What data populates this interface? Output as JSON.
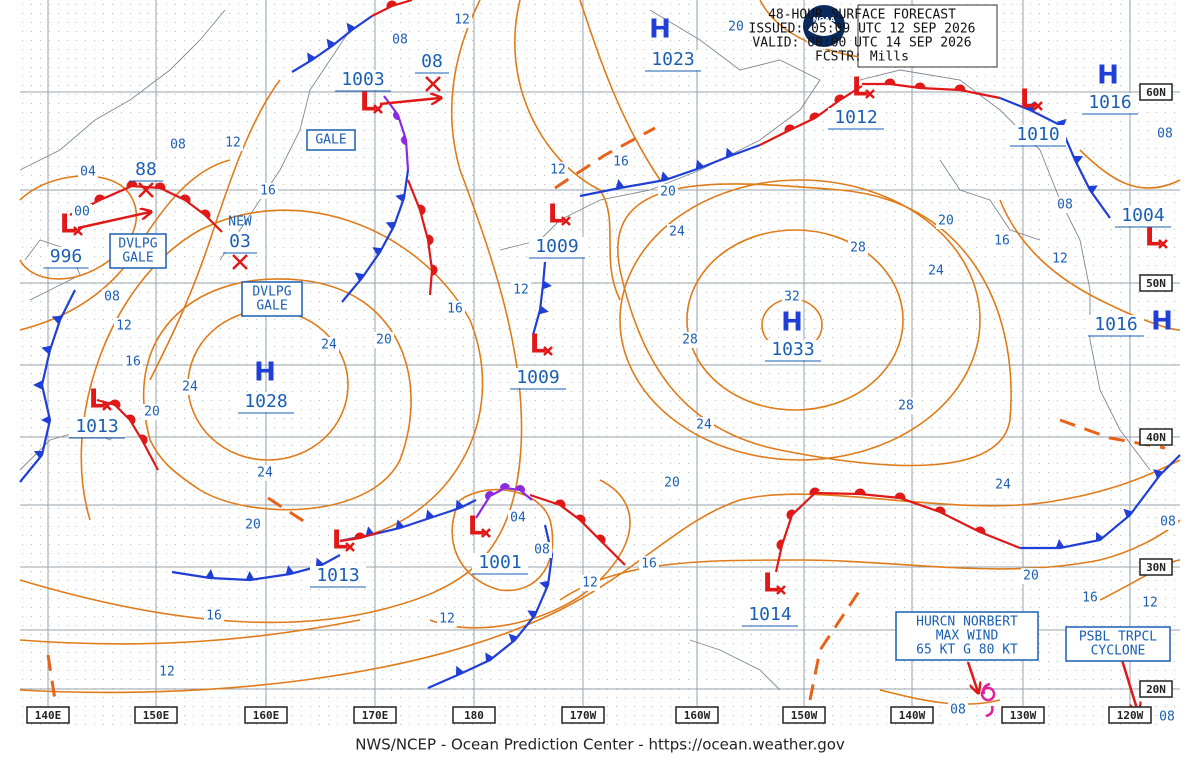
{
  "header": {
    "title": "48-HOUR SURFACE FORECAST",
    "issued": "ISSUED: 05:09 UTC 12 SEP 2026",
    "valid": "VALID:  00:00 UTC 14 SEP 2026",
    "forecaster": "FCSTR:  Mills"
  },
  "logo": "NOAA",
  "longitudes": [
    "140E",
    "150E",
    "160E",
    "170E",
    "180",
    "170W",
    "160W",
    "150W",
    "140W",
    "130W",
    "120W"
  ],
  "latitudes": [
    "60N",
    "50N",
    "40N",
    "30N",
    "20N"
  ],
  "centers": [
    {
      "symbol": "L",
      "pressure": "1003"
    },
    {
      "pressure": "08"
    },
    {
      "symbol": "H",
      "pressure": "1023"
    },
    {
      "symbol": "L",
      "pressure": "1012"
    },
    {
      "symbol": "L",
      "pressure": "1010"
    },
    {
      "symbol": "H",
      "pressure": "1016"
    },
    {
      "symbol": "L",
      "pressure": "1004"
    },
    {
      "symbol": "H",
      "pressure": "1016"
    },
    {
      "symbol": "H",
      "pressure": "1033"
    },
    {
      "symbol": "L",
      "pressure": "1009"
    },
    {
      "symbol": "L",
      "pressure": "1009"
    },
    {
      "symbol": "H",
      "pressure": "1028"
    },
    {
      "symbol": "L",
      "pressure": "1013"
    },
    {
      "symbol": "L",
      "pressure": "996"
    },
    {
      "pressure": "88"
    },
    {
      "note": "NEW",
      "pressure": "03"
    },
    {
      "symbol": "L",
      "pressure": "1013"
    },
    {
      "symbol": "L",
      "pressure": "1001"
    },
    {
      "symbol": "L",
      "pressure": "1014"
    }
  ],
  "isobar_labels": [
    "12",
    "08",
    "20",
    "04",
    "00",
    "08",
    "12",
    "16",
    "08",
    "12",
    "16",
    "24",
    "20",
    "24",
    "20",
    "16",
    "12",
    "12",
    "16",
    "20",
    "24",
    "28",
    "20",
    "24",
    "16",
    "12",
    "08",
    "08",
    "28",
    "28",
    "24",
    "20",
    "24",
    "20",
    "16",
    "12",
    "08",
    "24",
    "20",
    "16",
    "12",
    "12",
    "08",
    "12",
    "16",
    "08",
    "08",
    "32",
    "04"
  ],
  "annotations": [
    {
      "lines": [
        "DVLPG",
        "GALE"
      ]
    },
    {
      "lines": [
        "DVLPG",
        "GALE"
      ]
    },
    {
      "lines": [
        "GALE"
      ]
    },
    {
      "lines": [
        "HURCN NORBERT",
        "MAX WIND",
        "65 KT G 80 KT"
      ]
    },
    {
      "lines": [
        "PSBL TRPCL",
        "CYCLONE"
      ]
    }
  ],
  "footer": "NWS/NCEP - Ocean Prediction Center - https://ocean.weather.gov"
}
